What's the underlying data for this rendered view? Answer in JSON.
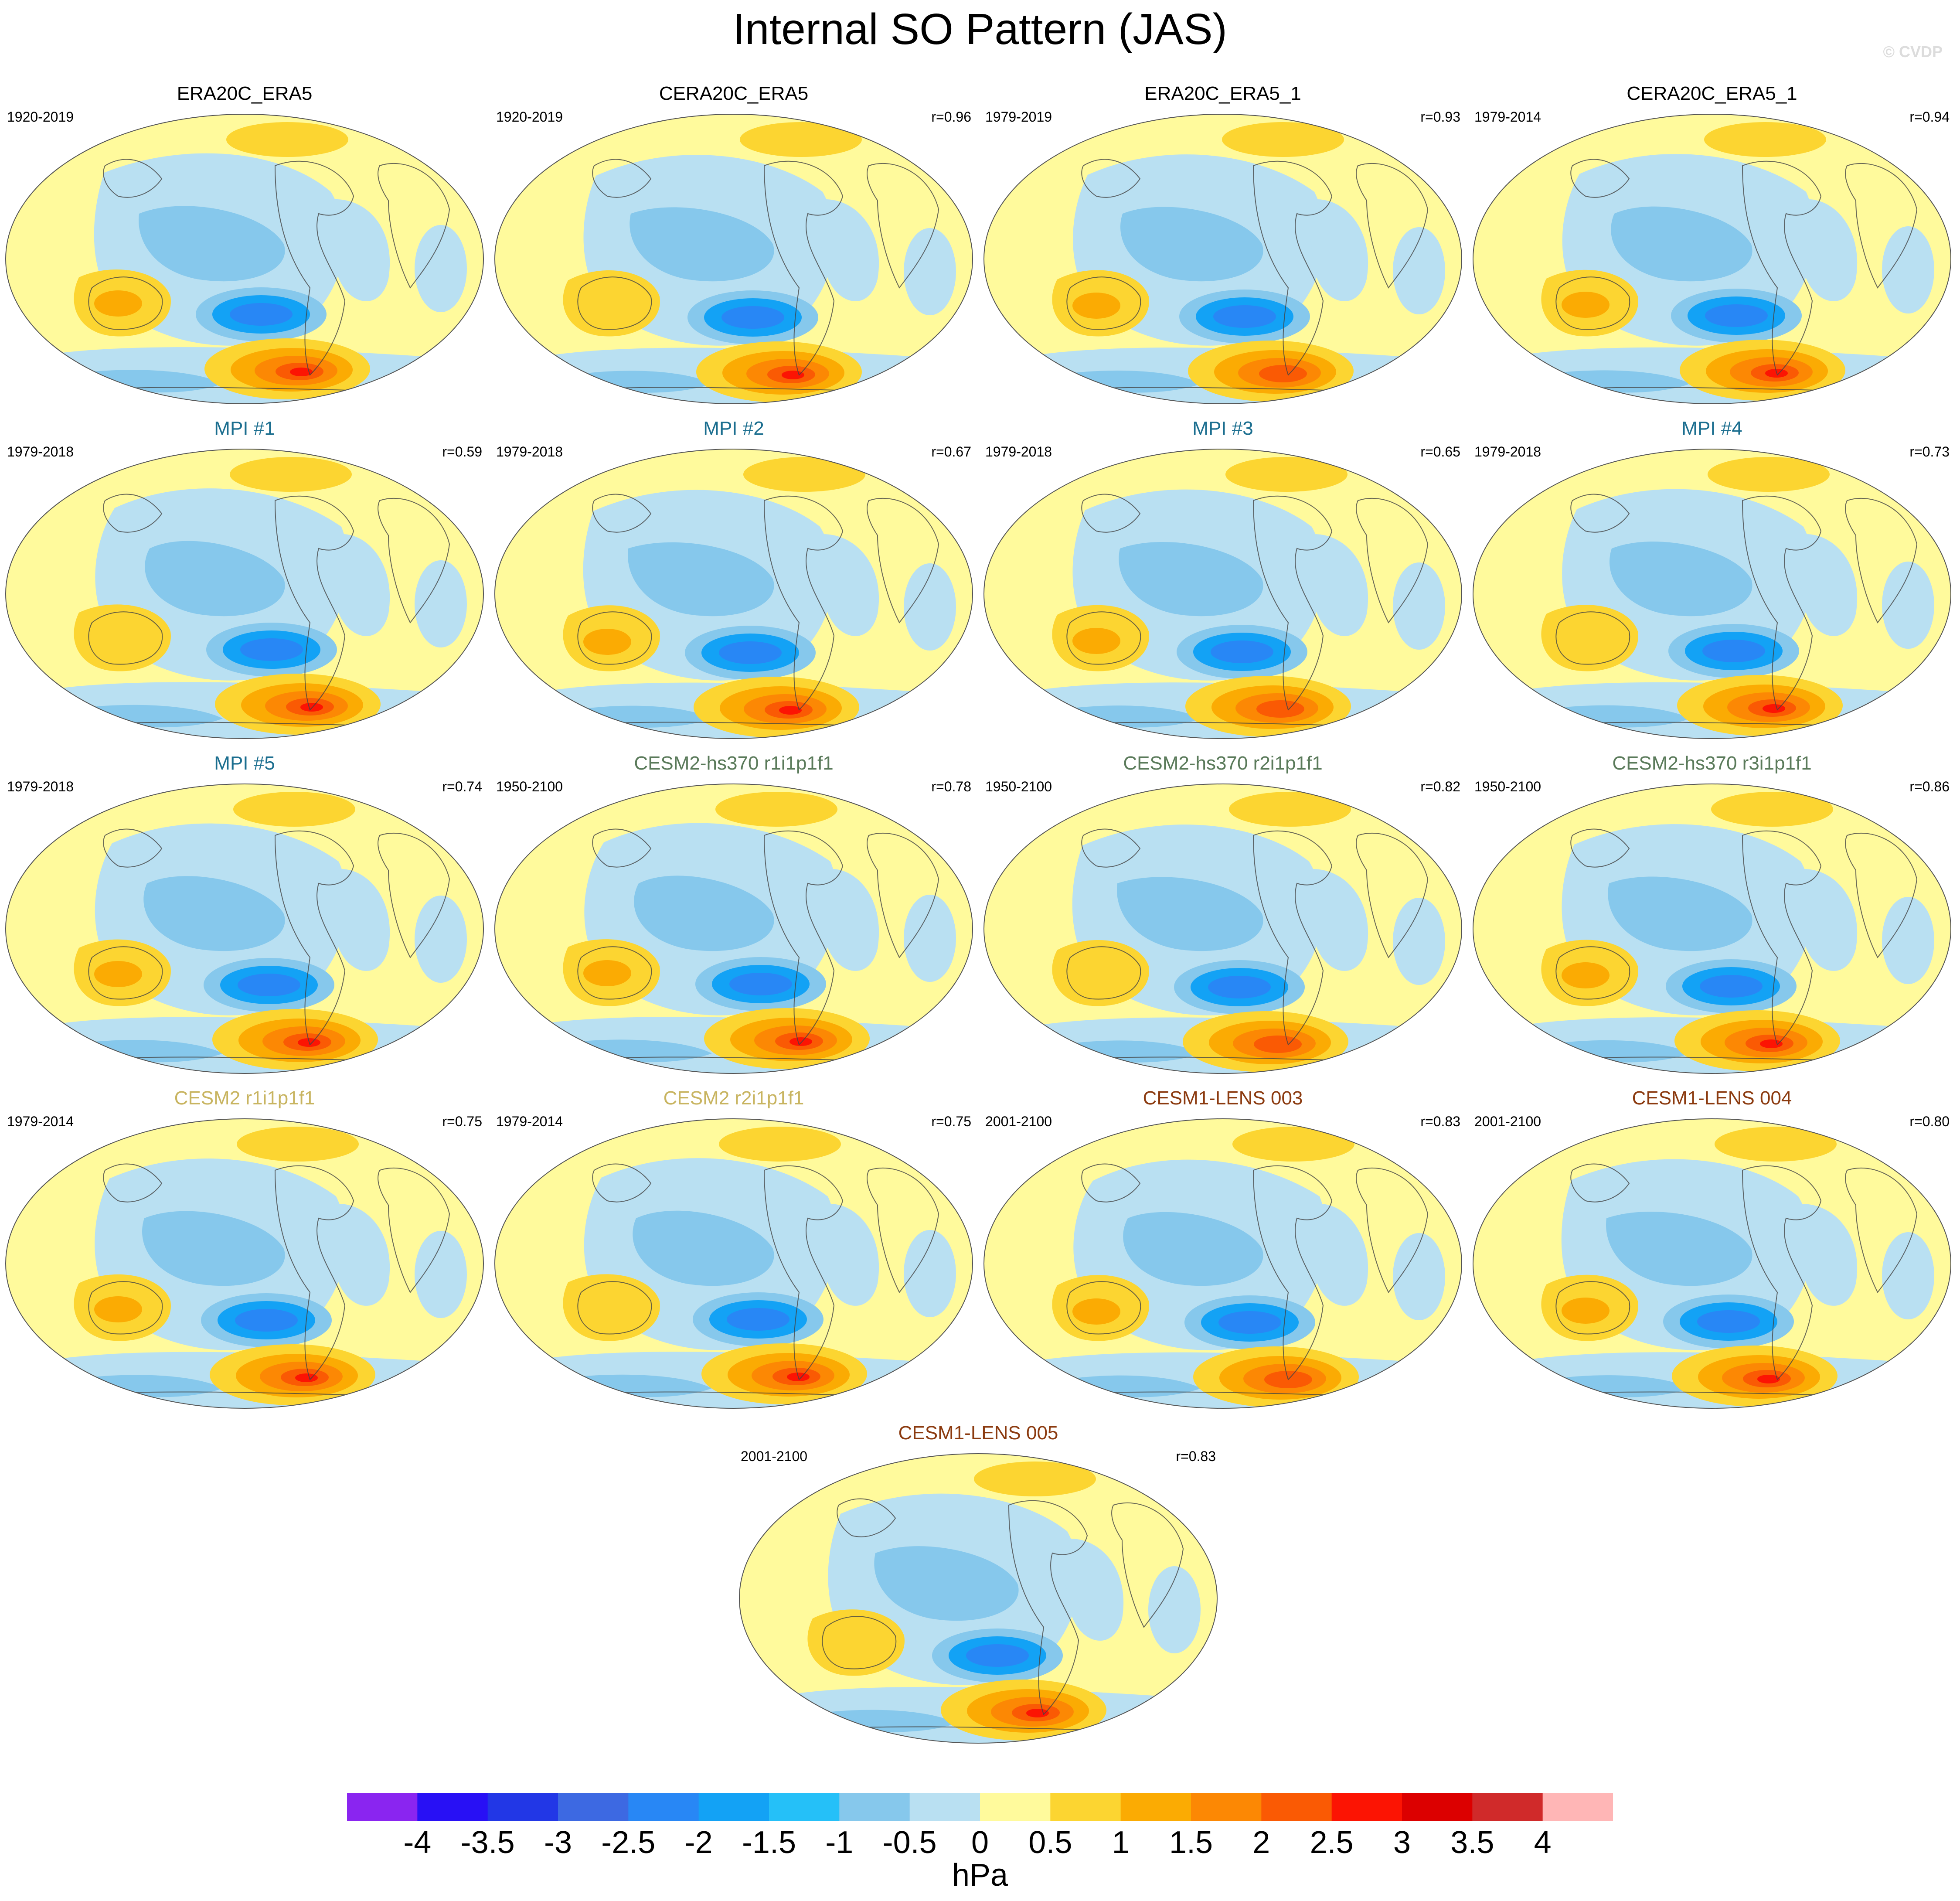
{
  "title": "Internal SO Pattern (JAS)",
  "copyright": "© CVDP",
  "colorbar": {
    "units": "hPa",
    "labels": [
      "-4",
      "-3.5",
      "-3",
      "-2.5",
      "-2",
      "-1.5",
      "-1",
      "-0.5",
      "0",
      "0.5",
      "1",
      "1.5",
      "2",
      "2.5",
      "3",
      "3.5",
      "4"
    ],
    "colors": [
      "#8a25f0",
      "#2810f5",
      "#2237e6",
      "#3d69e2",
      "#2887f5",
      "#13a2f5",
      "#25c0f8",
      "#86c8ec",
      "#b9e0f2",
      "#fffa9c",
      "#fcd531",
      "#fbab03",
      "#fc8804",
      "#fa5a04",
      "#fc1403",
      "#dc0000",
      "#d02a2a",
      "#ffb6b6"
    ]
  },
  "panels": [
    {
      "title": "ERA20C_ERA5",
      "years": "1920-2019",
      "r": "",
      "title_color": "#000000",
      "variant": 0
    },
    {
      "title": "CERA20C_ERA5",
      "years": "1920-2019",
      "r": "r=0.96",
      "title_color": "#000000",
      "variant": 1
    },
    {
      "title": "ERA20C_ERA5_1",
      "years": "1979-2019",
      "r": "r=0.93",
      "title_color": "#000000",
      "variant": 2
    },
    {
      "title": "CERA20C_ERA5_1",
      "years": "1979-2014",
      "r": "r=0.94",
      "title_color": "#000000",
      "variant": 3
    },
    {
      "title": "MPI #1",
      "years": "1979-2018",
      "r": "r=0.59",
      "title_color": "#1b6e8f",
      "variant": 4
    },
    {
      "title": "MPI #2",
      "years": "1979-2018",
      "r": "r=0.67",
      "title_color": "#1b6e8f",
      "variant": 5
    },
    {
      "title": "MPI #3",
      "years": "1979-2018",
      "r": "r=0.65",
      "title_color": "#1b6e8f",
      "variant": 6
    },
    {
      "title": "MPI #4",
      "years": "1979-2018",
      "r": "r=0.73",
      "title_color": "#1b6e8f",
      "variant": 7
    },
    {
      "title": "MPI #5",
      "years": "1979-2018",
      "r": "r=0.74",
      "title_color": "#1b6e8f",
      "variant": 8
    },
    {
      "title": "CESM2-hs370 r1i1p1f1",
      "years": "1950-2100",
      "r": "r=0.78",
      "title_color": "#5a7a5a",
      "variant": 9
    },
    {
      "title": "CESM2-hs370 r2i1p1f1",
      "years": "1950-2100",
      "r": "r=0.82",
      "title_color": "#5a7a5a",
      "variant": 10
    },
    {
      "title": "CESM2-hs370 r3i1p1f1",
      "years": "1950-2100",
      "r": "r=0.86",
      "title_color": "#5a7a5a",
      "variant": 11
    },
    {
      "title": "CESM2 r1i1p1f1",
      "years": "1979-2014",
      "r": "r=0.75",
      "title_color": "#c8b460",
      "variant": 12
    },
    {
      "title": "CESM2 r2i1p1f1",
      "years": "1979-2014",
      "r": "r=0.75",
      "title_color": "#c8b460",
      "variant": 13
    },
    {
      "title": "CESM1-LENS 003",
      "years": "2001-2100",
      "r": "r=0.83",
      "title_color": "#8b3a0f",
      "variant": 14
    },
    {
      "title": "CESM1-LENS 004",
      "years": "2001-2100",
      "r": "r=0.80",
      "title_color": "#8b3a0f",
      "variant": 15
    },
    {
      "title": "CESM1-LENS 005",
      "years": "2001-2100",
      "r": "r=0.83",
      "title_color": "#8b3a0f",
      "variant": 16
    }
  ]
}
